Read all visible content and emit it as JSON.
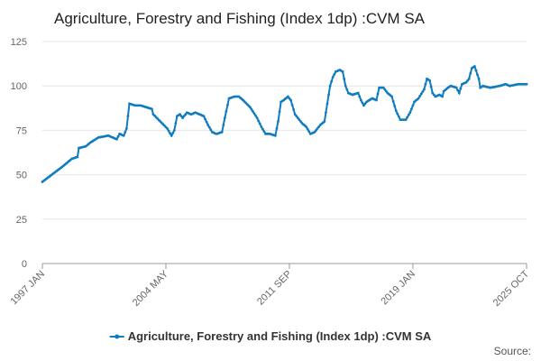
{
  "chart_data": {
    "type": "line",
    "title": "Agriculture, Forestry and Fishing (Index 1dp) :CVM SA",
    "source": "Source:",
    "categories": [
      "1997 JAN",
      null,
      null,
      null,
      null,
      null,
      null,
      null,
      null,
      null,
      null,
      null,
      null,
      null,
      null,
      null,
      null,
      null,
      null,
      null,
      null,
      null,
      null,
      null,
      null,
      null,
      null,
      null,
      null,
      null,
      null,
      null,
      null,
      null,
      null,
      null,
      null,
      null,
      null,
      null,
      null,
      null,
      null,
      null,
      null,
      null,
      null,
      null,
      null,
      null,
      null,
      null,
      null,
      null,
      null,
      null,
      null,
      null,
      null,
      null,
      null,
      null,
      null,
      null,
      null,
      null,
      null,
      null,
      null,
      null,
      null,
      null,
      null,
      null,
      null,
      null,
      null,
      null,
      null,
      null,
      null,
      null,
      null,
      null,
      null,
      null,
      null,
      null,
      "2004 MAY",
      null,
      null,
      null,
      null,
      null,
      null,
      null,
      null,
      null,
      null,
      null,
      null,
      null,
      null,
      null,
      null,
      null,
      null,
      null,
      null,
      null,
      null,
      null,
      null,
      null,
      null,
      null,
      null,
      null,
      null,
      null,
      null,
      null,
      null,
      null,
      null,
      null,
      null,
      null,
      null,
      null,
      null,
      null,
      null,
      null,
      null,
      null,
      null,
      null,
      null,
      null,
      null,
      null,
      null,
      null,
      null,
      null,
      null,
      null,
      null,
      null,
      null,
      null,
      null,
      null,
      null,
      null,
      null,
      null,
      null,
      null,
      null,
      null,
      null,
      null,
      null,
      null,
      null,
      null,
      null,
      null,
      null,
      null,
      null,
      null,
      null,
      null,
      "2011 SEP",
      null,
      null,
      null,
      null,
      null,
      null,
      null,
      null,
      null,
      null,
      null,
      null,
      null,
      null,
      null,
      null,
      null,
      null,
      null,
      null,
      null,
      null,
      null,
      null,
      null,
      null,
      null,
      null,
      null,
      null,
      null,
      null,
      null,
      null,
      null,
      null,
      null,
      null,
      null,
      null,
      null,
      null,
      null,
      null,
      null,
      null,
      null,
      null,
      null,
      null,
      null,
      null,
      null,
      null,
      null,
      null,
      null,
      null,
      null,
      null,
      null,
      null,
      null,
      null,
      null,
      null,
      null,
      null,
      null,
      null,
      null,
      null,
      null,
      null,
      null,
      null,
      null,
      null,
      null,
      null,
      null,
      null,
      null,
      null,
      null,
      null,
      null,
      "2019 JAN",
      null,
      null,
      null,
      null,
      null,
      null,
      null,
      null,
      null,
      null,
      null,
      null,
      null,
      null,
      null,
      null,
      null,
      null,
      null,
      null,
      null,
      null,
      null,
      null,
      null,
      null,
      null,
      null,
      null,
      null,
      null,
      null,
      null,
      null,
      null,
      null,
      null,
      null,
      null,
      null,
      null,
      null,
      null,
      null,
      null,
      null,
      null,
      null,
      null,
      null,
      null,
      null,
      null,
      null,
      null,
      null,
      null,
      null,
      null,
      null,
      null,
      null,
      null,
      null,
      null,
      null,
      null,
      null,
      null,
      null,
      null,
      null,
      null,
      null,
      null,
      null,
      null,
      null,
      null,
      null,
      "2025 OCT"
    ],
    "series": [
      {
        "name": "Agriculture, Forestry and Fishing (Index 1dp) :CVM SA",
        "color": "#0f7cbf",
        "values": [
          46,
          46.6,
          47.2,
          47.8,
          48.4,
          49,
          49.6,
          50.2,
          50.8,
          51.4,
          52,
          52.6,
          53.2,
          53.8,
          54.4,
          55,
          55.7,
          56.3,
          57,
          57.7,
          58.3,
          59,
          59.2,
          59.5,
          59.8,
          60,
          65,
          65.2,
          65.4,
          65.6,
          65.8,
          66,
          66.7,
          67.3,
          68,
          68.5,
          69,
          69.5,
          70,
          70.5,
          71,
          71.1,
          71.3,
          71.4,
          71.6,
          71.7,
          71.9,
          72,
          71.7,
          71.3,
          71,
          70.7,
          70.3,
          70,
          71.5,
          73,
          72.7,
          72.3,
          72,
          74,
          76,
          83,
          90,
          89.8,
          89.5,
          89.3,
          89,
          89,
          89,
          89,
          89,
          88.8,
          88.5,
          88.3,
          88,
          87.8,
          87.5,
          87.3,
          87,
          84,
          83.2,
          82.4,
          81.6,
          80.8,
          80,
          79.2,
          78.4,
          77.6,
          76.8,
          76,
          74.7,
          73.3,
          72,
          73.5,
          75,
          79,
          83,
          83.5,
          84,
          83,
          82,
          83,
          84,
          85,
          84.7,
          84.3,
          84,
          84.3,
          84.7,
          85,
          84.7,
          84.3,
          84,
          83.7,
          83.3,
          83,
          81.3,
          79.7,
          78,
          76.7,
          75.3,
          74,
          73.7,
          73.3,
          73,
          73.2,
          73.5,
          73.8,
          74,
          78,
          82,
          85.7,
          89.3,
          93,
          93.2,
          93.5,
          93.8,
          94,
          94,
          94,
          94,
          93.3,
          92.7,
          92,
          91.2,
          90.4,
          89.6,
          88.8,
          88,
          86.8,
          85.6,
          84.4,
          83.2,
          82,
          80.3,
          78.7,
          77,
          75.7,
          74.3,
          73,
          73,
          73,
          73,
          72.8,
          72.5,
          72.3,
          72,
          76,
          80,
          85.5,
          91,
          91.5,
          92,
          92.7,
          93.3,
          94,
          93,
          92,
          89.3,
          86.7,
          84,
          83,
          82,
          81,
          80,
          79,
          78.3,
          77.7,
          77,
          75.7,
          74.3,
          73,
          73.3,
          73.7,
          74,
          75,
          76,
          77,
          78,
          78.7,
          79.3,
          80,
          85,
          90,
          95,
          100,
          102.5,
          105,
          106.5,
          108,
          108.3,
          108.7,
          109,
          108.5,
          108,
          104,
          100,
          98,
          96,
          95.7,
          95.3,
          95,
          95.3,
          95.5,
          95.8,
          96,
          94,
          92,
          90.5,
          89,
          90,
          91,
          91.5,
          92,
          92.5,
          93,
          92.7,
          92.3,
          92,
          95.5,
          99,
          99,
          99,
          99,
          98,
          97,
          96,
          95.3,
          94.7,
          94,
          91.3,
          88.7,
          86,
          84.3,
          82.7,
          81,
          81,
          81,
          81,
          81,
          82.3,
          83.7,
          85,
          87,
          89,
          91,
          91.7,
          92.3,
          93,
          94.3,
          95.5,
          96.8,
          98,
          101,
          104,
          103.5,
          103,
          99.5,
          96,
          95,
          94,
          94.3,
          94.7,
          95,
          94.5,
          94,
          97,
          97.7,
          98.3,
          99,
          99.5,
          100,
          99.8,
          99.5,
          99.3,
          99,
          97.5,
          96,
          98.5,
          101,
          101.3,
          101.7,
          102,
          103,
          104,
          107,
          110,
          110.5,
          111,
          108.7,
          106.3,
          104,
          99,
          99.5,
          100,
          99.8,
          99.6,
          99.4,
          99.2,
          99,
          99.1,
          99.3,
          99.4,
          99.6,
          99.7,
          99.9,
          100,
          100.3,
          100.5,
          100.8,
          101,
          100.7,
          100.3,
          100,
          100.2,
          100.3,
          100.5,
          100.7,
          100.8,
          101,
          101,
          101,
          101,
          101,
          101,
          101
        ]
      }
    ],
    "ylim": [
      0,
      125
    ],
    "yticks": [
      0,
      25,
      50,
      75,
      100,
      125
    ],
    "grid": true,
    "legend": "bottom"
  }
}
